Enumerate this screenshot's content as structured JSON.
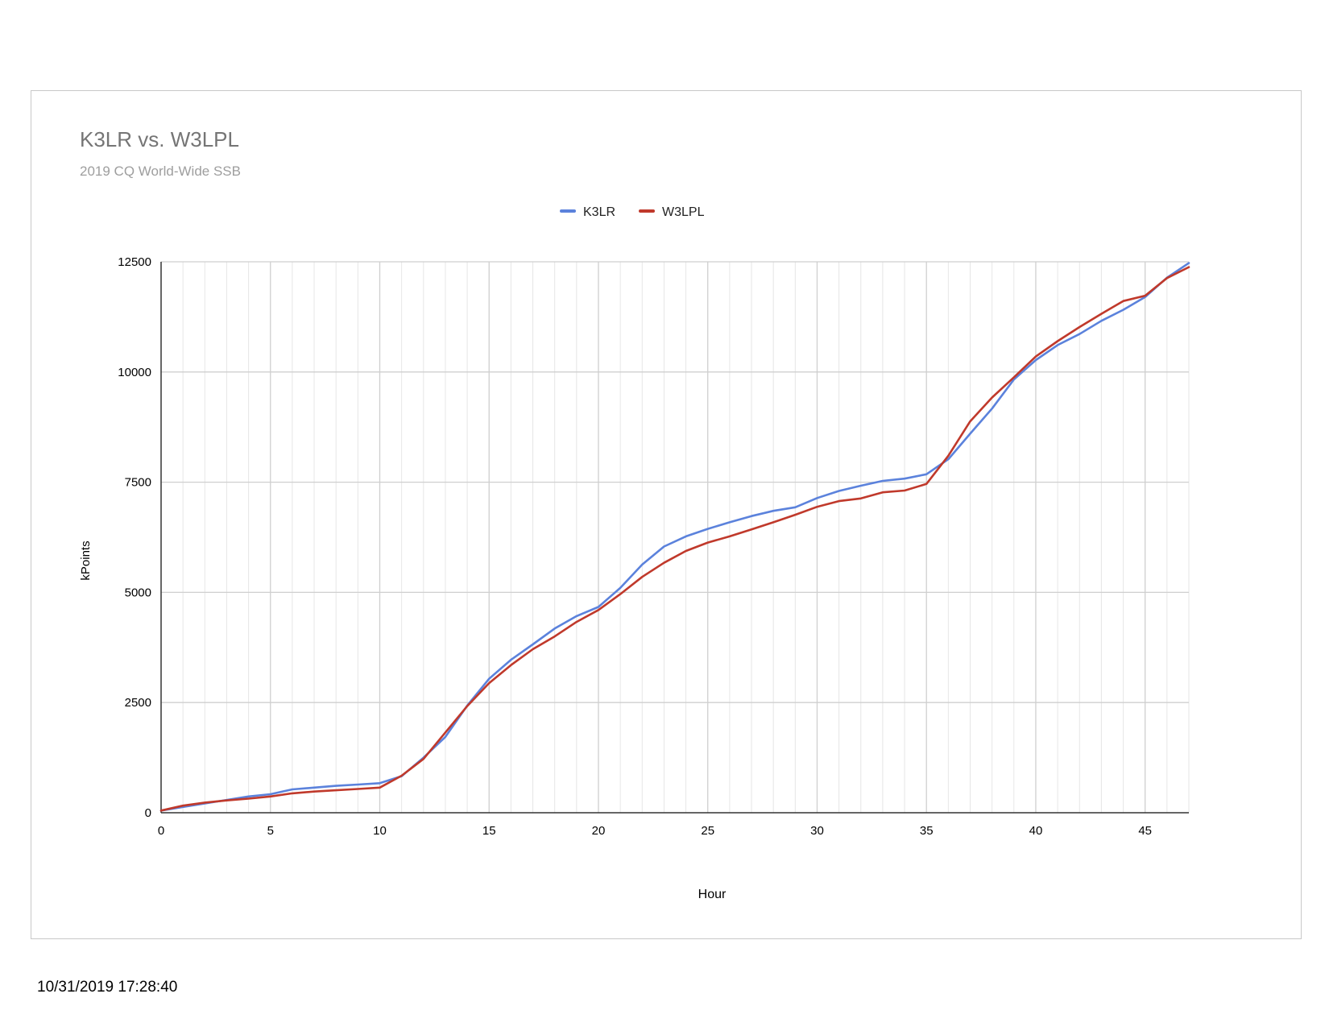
{
  "timestamp": "10/31/2019 17:28:40",
  "chart_data": {
    "type": "line",
    "title": "K3LR vs. W3LPL",
    "subtitle": "2019 CQ World-Wide SSB",
    "xlabel": "Hour",
    "ylabel": "kPoints",
    "xlim": [
      0,
      47
    ],
    "ylim": [
      0,
      12500
    ],
    "x_ticks": [
      0,
      5,
      10,
      15,
      20,
      25,
      30,
      35,
      40,
      45
    ],
    "y_ticks": [
      0,
      2500,
      5000,
      7500,
      10000,
      12500
    ],
    "grid": true,
    "legend_position": "top-center",
    "x": [
      0,
      1,
      2,
      3,
      4,
      5,
      6,
      7,
      8,
      9,
      10,
      11,
      12,
      13,
      14,
      15,
      16,
      17,
      18,
      19,
      20,
      21,
      22,
      23,
      24,
      25,
      26,
      27,
      28,
      29,
      30,
      31,
      32,
      33,
      34,
      35,
      36,
      37,
      38,
      39,
      40,
      41,
      42,
      43,
      44,
      45,
      46,
      47
    ],
    "series": [
      {
        "name": "K3LR",
        "color": "#5b82dc",
        "values": [
          50,
          130,
          210,
          290,
          370,
          420,
          530,
          570,
          610,
          640,
          670,
          830,
          1250,
          1720,
          2430,
          3040,
          3470,
          3820,
          4180,
          4460,
          4670,
          5100,
          5630,
          6040,
          6270,
          6440,
          6590,
          6730,
          6850,
          6930,
          7140,
          7300,
          7420,
          7530,
          7580,
          7680,
          8020,
          8600,
          9170,
          9830,
          10270,
          10610,
          10860,
          11160,
          11410,
          11700,
          12140,
          12470
        ]
      },
      {
        "name": "W3LPL",
        "color": "#c0392b",
        "values": [
          50,
          160,
          230,
          280,
          320,
          370,
          440,
          480,
          510,
          540,
          570,
          840,
          1220,
          1820,
          2420,
          2940,
          3350,
          3710,
          4000,
          4330,
          4600,
          4960,
          5350,
          5670,
          5940,
          6130,
          6270,
          6430,
          6590,
          6760,
          6940,
          7070,
          7130,
          7270,
          7310,
          7460,
          8100,
          8880,
          9420,
          9880,
          10350,
          10700,
          11020,
          11320,
          11610,
          11730,
          12130,
          12380
        ]
      }
    ]
  }
}
